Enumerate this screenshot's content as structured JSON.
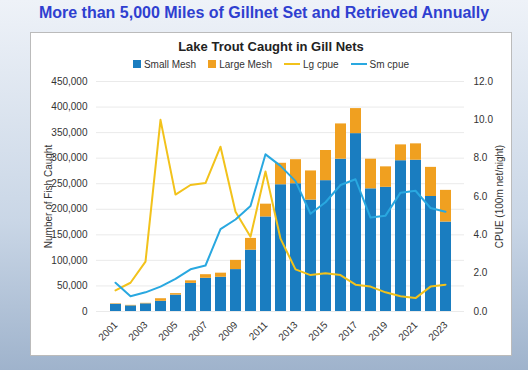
{
  "slide_title": "More than 5,000 Miles of Gillnet Set and Retrieved Annually",
  "chart_data": {
    "type": "bar",
    "title": "Lake Trout Caught in Gill Nets",
    "stacked": true,
    "grid": true,
    "legend": "top",
    "y_label": "Number of Fish Caught",
    "y2_label": "CPUE (100m net/night)",
    "categories": [
      "2001",
      null,
      "2003",
      null,
      "2005",
      null,
      "2007",
      null,
      "2009",
      null,
      "2011",
      null,
      "2013",
      null,
      "2015",
      null,
      "2017",
      null,
      "2019",
      null,
      "2021",
      null,
      "2023"
    ],
    "ylim": [
      0,
      450000
    ],
    "yticks": [
      0,
      {
        "value": 50000,
        "label": "50,000"
      },
      {
        "value": 100000,
        "label": "100,000"
      },
      {
        "value": 150000,
        "label": "150,000"
      },
      {
        "value": 200000,
        "label": "200,000"
      },
      {
        "value": 250000,
        "label": "250,000"
      },
      {
        "value": 300000,
        "label": "300,000"
      },
      {
        "value": 350000,
        "label": "350,000"
      },
      {
        "value": 400000,
        "label": "400,000"
      },
      {
        "value": 450000,
        "label": "450,000"
      }
    ],
    "y2lim": [
      0,
      12
    ],
    "y2ticks": [
      {
        "value": 0,
        "label": "0.0"
      },
      {
        "value": 2,
        "label": "2.0"
      },
      {
        "value": 4,
        "label": "4.0"
      },
      {
        "value": 6,
        "label": "6.0"
      },
      {
        "value": 8,
        "label": "8.0"
      },
      {
        "value": 10,
        "label": "10.0"
      },
      {
        "value": 12,
        "label": "12.0"
      }
    ],
    "series": [
      {
        "name": "Small Mesh",
        "type": "bar",
        "color": "#1a7dc0",
        "values": [
          14000,
          11000,
          15000,
          20000,
          32000,
          55000,
          65000,
          67000,
          82000,
          120000,
          185000,
          248000,
          250000,
          218000,
          256000,
          298000,
          348000,
          240000,
          243000,
          295000,
          296000,
          225000,
          175000
        ]
      },
      {
        "name": "Large Mesh",
        "type": "bar",
        "color": "#f0a020",
        "values": [
          1000,
          1000,
          1000,
          5000,
          3000,
          5000,
          7000,
          8000,
          18000,
          23000,
          25000,
          42000,
          47000,
          57000,
          59000,
          69000,
          49000,
          58000,
          40000,
          31000,
          32000,
          57000,
          62000
        ]
      },
      {
        "name": "Lg cpue",
        "type": "line",
        "axis": "y2",
        "color": "#f2c21b",
        "values": [
          1.1,
          1.5,
          2.6,
          10.0,
          6.1,
          6.6,
          6.7,
          8.6,
          5.2,
          3.9,
          7.3,
          3.8,
          2.2,
          1.9,
          2.0,
          1.9,
          1.4,
          1.3,
          1.0,
          0.8,
          0.7,
          1.3,
          1.4
        ]
      },
      {
        "name": "Sm cpue",
        "type": "line",
        "axis": "y2",
        "color": "#29a8e0",
        "values": [
          1.5,
          0.8,
          1.0,
          1.3,
          1.7,
          2.2,
          2.4,
          4.3,
          4.8,
          5.5,
          8.2,
          7.6,
          6.8,
          5.1,
          5.7,
          6.6,
          6.9,
          4.9,
          5.0,
          6.2,
          6.3,
          5.4,
          5.2
        ]
      }
    ]
  }
}
